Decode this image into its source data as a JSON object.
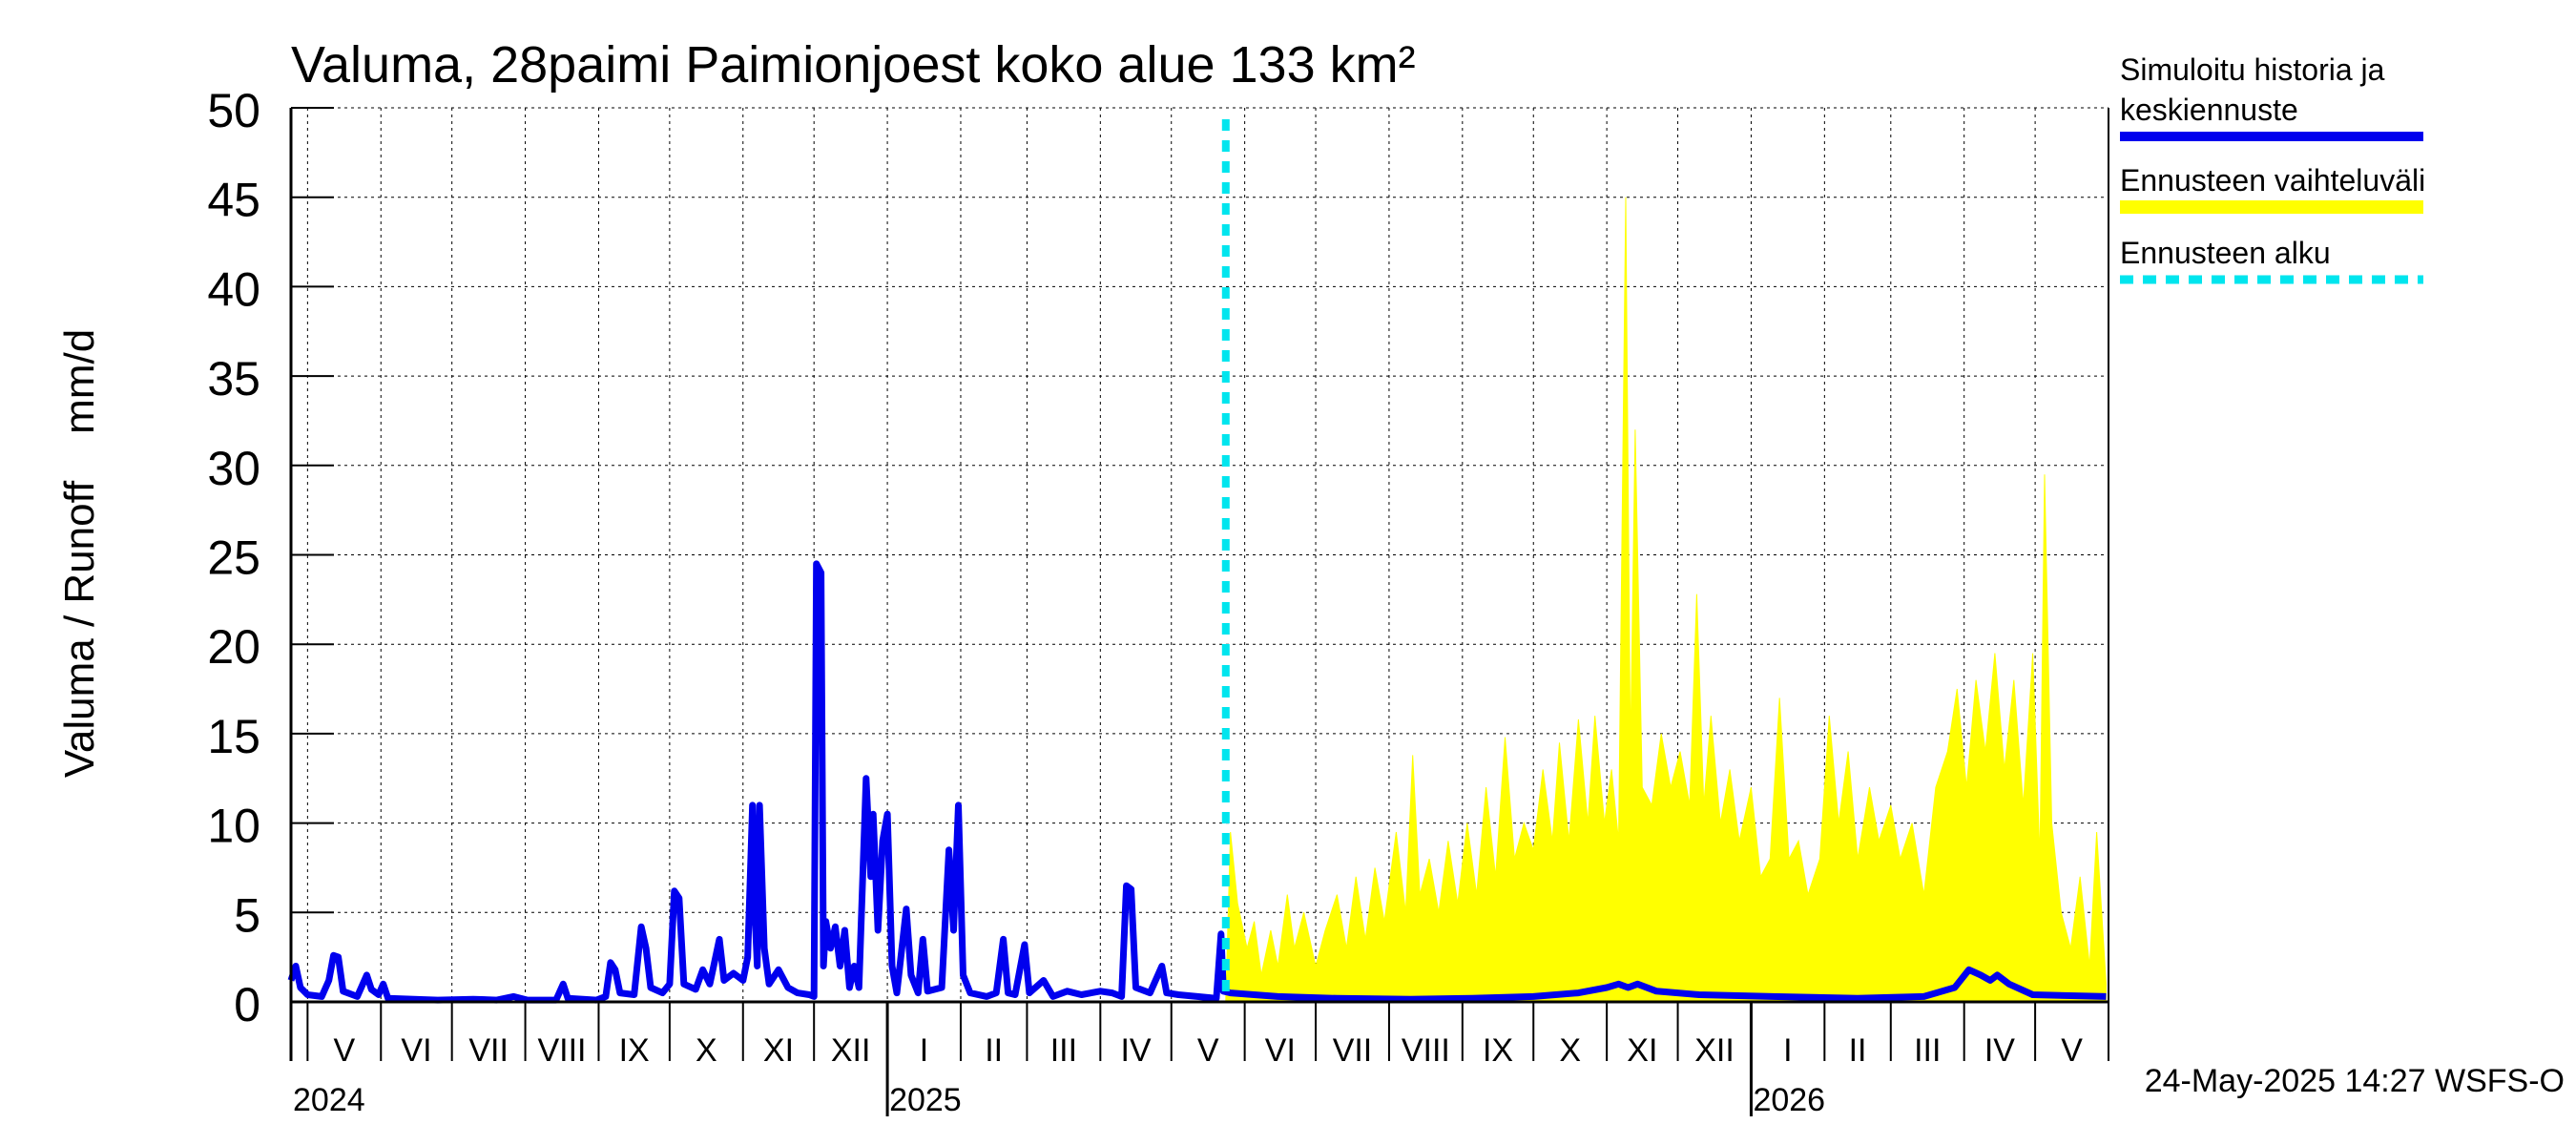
{
  "chart_data": {
    "type": "area",
    "title": "Valuma, 28paimi Paimionjoest koko alue 133 km²",
    "ylabel": "Valuma / Runoff    mm/d",
    "ylim": [
      0,
      50
    ],
    "yticks": [
      0,
      5,
      10,
      15,
      20,
      25,
      30,
      35,
      40,
      45,
      50
    ],
    "xlim": [
      "2024-04-24",
      "2026-05-31"
    ],
    "grid": true,
    "legend_position": "right",
    "forecast_start": "2025-05-24",
    "timestamp": "24-May-2025 14:27 WSFS-O",
    "month_labels": [
      {
        "label": "V",
        "start": "2024-05-01",
        "end": "2024-05-31"
      },
      {
        "label": "VI",
        "start": "2024-06-01",
        "end": "2024-06-30"
      },
      {
        "label": "VII",
        "start": "2024-07-01",
        "end": "2024-07-31"
      },
      {
        "label": "VIII",
        "start": "2024-08-01",
        "end": "2024-08-31"
      },
      {
        "label": "IX",
        "start": "2024-09-01",
        "end": "2024-09-30"
      },
      {
        "label": "X",
        "start": "2024-10-01",
        "end": "2024-10-31"
      },
      {
        "label": "XI",
        "start": "2024-11-01",
        "end": "2024-11-30"
      },
      {
        "label": "XII",
        "start": "2024-12-01",
        "end": "2024-12-31"
      },
      {
        "label": "I",
        "start": "2025-01-01",
        "end": "2025-01-31"
      },
      {
        "label": "II",
        "start": "2025-02-01",
        "end": "2025-02-28"
      },
      {
        "label": "III",
        "start": "2025-03-01",
        "end": "2025-03-31"
      },
      {
        "label": "IV",
        "start": "2025-04-01",
        "end": "2025-04-30"
      },
      {
        "label": "V",
        "start": "2025-05-01",
        "end": "2025-05-31"
      },
      {
        "label": "VI",
        "start": "2025-06-01",
        "end": "2025-06-30"
      },
      {
        "label": "VII",
        "start": "2025-07-01",
        "end": "2025-07-31"
      },
      {
        "label": "VIII",
        "start": "2025-08-01",
        "end": "2025-08-31"
      },
      {
        "label": "IX",
        "start": "2025-09-01",
        "end": "2025-09-30"
      },
      {
        "label": "X",
        "start": "2025-10-01",
        "end": "2025-10-31"
      },
      {
        "label": "XI",
        "start": "2025-11-01",
        "end": "2025-11-30"
      },
      {
        "label": "XII",
        "start": "2025-12-01",
        "end": "2025-12-31"
      },
      {
        "label": "I",
        "start": "2026-01-01",
        "end": "2026-01-31"
      },
      {
        "label": "II",
        "start": "2026-02-01",
        "end": "2026-02-28"
      },
      {
        "label": "III",
        "start": "2026-03-01",
        "end": "2026-03-31"
      },
      {
        "label": "IV",
        "start": "2026-04-01",
        "end": "2026-04-30"
      },
      {
        "label": "V",
        "start": "2026-05-01",
        "end": "2026-05-31"
      }
    ],
    "year_labels": [
      {
        "label": "2024",
        "date": "2024-04-24"
      },
      {
        "label": "2025",
        "date": "2025-01-01"
      },
      {
        "label": "2026",
        "date": "2026-01-01"
      }
    ],
    "series": [
      {
        "name": "Simuloitu historia ja keskiennuste",
        "color": "#0000ee",
        "points": [
          [
            "2024-04-24",
            1.2
          ],
          [
            "2024-04-26",
            2.0
          ],
          [
            "2024-04-28",
            0.8
          ],
          [
            "2024-05-01",
            0.4
          ],
          [
            "2024-05-07",
            0.3
          ],
          [
            "2024-05-10",
            1.2
          ],
          [
            "2024-05-12",
            2.6
          ],
          [
            "2024-05-14",
            2.5
          ],
          [
            "2024-05-16",
            0.6
          ],
          [
            "2024-05-22",
            0.3
          ],
          [
            "2024-05-26",
            1.5
          ],
          [
            "2024-05-28",
            0.7
          ],
          [
            "2024-05-31",
            0.4
          ],
          [
            "2024-06-02",
            1.0
          ],
          [
            "2024-06-04",
            0.2
          ],
          [
            "2024-06-15",
            0.15
          ],
          [
            "2024-06-25",
            0.1
          ],
          [
            "2024-07-10",
            0.15
          ],
          [
            "2024-07-20",
            0.1
          ],
          [
            "2024-07-27",
            0.3
          ],
          [
            "2024-08-02",
            0.1
          ],
          [
            "2024-08-14",
            0.1
          ],
          [
            "2024-08-17",
            1.0
          ],
          [
            "2024-08-19",
            0.2
          ],
          [
            "2024-08-31",
            0.1
          ],
          [
            "2024-09-04",
            0.3
          ],
          [
            "2024-09-06",
            2.2
          ],
          [
            "2024-09-08",
            1.8
          ],
          [
            "2024-09-10",
            0.5
          ],
          [
            "2024-09-16",
            0.4
          ],
          [
            "2024-09-19",
            4.2
          ],
          [
            "2024-09-21",
            3.0
          ],
          [
            "2024-09-23",
            0.8
          ],
          [
            "2024-09-28",
            0.5
          ],
          [
            "2024-10-01",
            1.0
          ],
          [
            "2024-10-03",
            6.2
          ],
          [
            "2024-10-05",
            5.8
          ],
          [
            "2024-10-07",
            1.0
          ],
          [
            "2024-10-12",
            0.7
          ],
          [
            "2024-10-15",
            1.8
          ],
          [
            "2024-10-18",
            1.0
          ],
          [
            "2024-10-22",
            3.5
          ],
          [
            "2024-10-24",
            1.2
          ],
          [
            "2024-10-28",
            1.6
          ],
          [
            "2024-11-01",
            1.2
          ],
          [
            "2024-11-03",
            2.5
          ],
          [
            "2024-11-05",
            11.0
          ],
          [
            "2024-11-06",
            5.0
          ],
          [
            "2024-11-07",
            2.0
          ],
          [
            "2024-11-08",
            11.0
          ],
          [
            "2024-11-10",
            3.0
          ],
          [
            "2024-11-12",
            1.0
          ],
          [
            "2024-11-16",
            1.8
          ],
          [
            "2024-11-20",
            0.8
          ],
          [
            "2024-11-24",
            0.5
          ],
          [
            "2024-11-29",
            0.4
          ],
          [
            "2024-12-01",
            0.3
          ],
          [
            "2024-12-02",
            24.5
          ],
          [
            "2024-12-04",
            24.0
          ],
          [
            "2024-12-05",
            2.0
          ],
          [
            "2024-12-06",
            4.5
          ],
          [
            "2024-12-08",
            3.0
          ],
          [
            "2024-12-10",
            4.2
          ],
          [
            "2024-12-12",
            2.0
          ],
          [
            "2024-12-14",
            4.0
          ],
          [
            "2024-12-16",
            0.8
          ],
          [
            "2024-12-18",
            2.0
          ],
          [
            "2024-12-20",
            0.8
          ],
          [
            "2024-12-23",
            12.5
          ],
          [
            "2024-12-25",
            7.0
          ],
          [
            "2024-12-26",
            10.5
          ],
          [
            "2024-12-28",
            4.0
          ],
          [
            "2024-12-30",
            9.0
          ],
          [
            "2025-01-01",
            10.5
          ],
          [
            "2025-01-03",
            2.0
          ],
          [
            "2025-01-05",
            0.5
          ],
          [
            "2025-01-09",
            5.2
          ],
          [
            "2025-01-11",
            1.5
          ],
          [
            "2025-01-14",
            0.5
          ],
          [
            "2025-01-16",
            3.5
          ],
          [
            "2025-01-18",
            0.6
          ],
          [
            "2025-01-24",
            0.8
          ],
          [
            "2025-01-27",
            8.5
          ],
          [
            "2025-01-29",
            4.0
          ],
          [
            "2025-01-31",
            11.0
          ],
          [
            "2025-02-02",
            1.5
          ],
          [
            "2025-02-05",
            0.5
          ],
          [
            "2025-02-12",
            0.3
          ],
          [
            "2025-02-16",
            0.5
          ],
          [
            "2025-02-19",
            3.5
          ],
          [
            "2025-02-21",
            0.5
          ],
          [
            "2025-02-24",
            0.4
          ],
          [
            "2025-02-28",
            3.2
          ],
          [
            "2025-03-02",
            0.5
          ],
          [
            "2025-03-08",
            1.2
          ],
          [
            "2025-03-12",
            0.3
          ],
          [
            "2025-03-18",
            0.6
          ],
          [
            "2025-03-24",
            0.4
          ],
          [
            "2025-04-01",
            0.6
          ],
          [
            "2025-04-06",
            0.5
          ],
          [
            "2025-04-10",
            0.3
          ],
          [
            "2025-04-12",
            6.5
          ],
          [
            "2025-04-14",
            6.3
          ],
          [
            "2025-04-16",
            0.8
          ],
          [
            "2025-04-22",
            0.5
          ],
          [
            "2025-04-27",
            2.0
          ],
          [
            "2025-04-29",
            0.5
          ],
          [
            "2025-05-04",
            0.4
          ],
          [
            "2025-05-12",
            0.3
          ],
          [
            "2025-05-20",
            0.2
          ],
          [
            "2025-05-22",
            3.8
          ],
          [
            "2025-05-23",
            0.6
          ],
          [
            "2025-05-26",
            0.5
          ],
          [
            "2025-06-15",
            0.3
          ],
          [
            "2025-07-10",
            0.2
          ],
          [
            "2025-08-10",
            0.15
          ],
          [
            "2025-09-05",
            0.2
          ],
          [
            "2025-10-01",
            0.3
          ],
          [
            "2025-10-20",
            0.5
          ],
          [
            "2025-11-01",
            0.8
          ],
          [
            "2025-11-06",
            1.0
          ],
          [
            "2025-11-10",
            0.8
          ],
          [
            "2025-11-14",
            1.0
          ],
          [
            "2025-11-22",
            0.6
          ],
          [
            "2025-12-10",
            0.4
          ],
          [
            "2026-01-10",
            0.3
          ],
          [
            "2026-02-15",
            0.2
          ],
          [
            "2026-03-15",
            0.3
          ],
          [
            "2026-03-28",
            0.8
          ],
          [
            "2026-04-03",
            1.8
          ],
          [
            "2026-04-08",
            1.5
          ],
          [
            "2026-04-12",
            1.2
          ],
          [
            "2026-04-15",
            1.5
          ],
          [
            "2026-04-20",
            1.0
          ],
          [
            "2026-04-30",
            0.4
          ],
          [
            "2026-05-31",
            0.3
          ]
        ]
      },
      {
        "name": "Ennusteen vaihteluväli",
        "color": "#ffff00",
        "points": [
          [
            "2025-05-24",
            0.1
          ],
          [
            "2025-05-26",
            9.5
          ],
          [
            "2025-05-29",
            5.5
          ],
          [
            "2025-06-02",
            3.0
          ],
          [
            "2025-06-05",
            4.5
          ],
          [
            "2025-06-08",
            1.5
          ],
          [
            "2025-06-12",
            4.0
          ],
          [
            "2025-06-15",
            2.0
          ],
          [
            "2025-06-19",
            6.0
          ],
          [
            "2025-06-22",
            3.0
          ],
          [
            "2025-06-26",
            5.0
          ],
          [
            "2025-07-01",
            2.0
          ],
          [
            "2025-07-05",
            4.0
          ],
          [
            "2025-07-10",
            6.0
          ],
          [
            "2025-07-14",
            3.0
          ],
          [
            "2025-07-18",
            7.0
          ],
          [
            "2025-07-22",
            3.5
          ],
          [
            "2025-07-26",
            7.5
          ],
          [
            "2025-07-30",
            4.5
          ],
          [
            "2025-08-04",
            9.5
          ],
          [
            "2025-08-08",
            5.0
          ],
          [
            "2025-08-11",
            13.8
          ],
          [
            "2025-08-14",
            6.0
          ],
          [
            "2025-08-18",
            8.0
          ],
          [
            "2025-08-22",
            5.0
          ],
          [
            "2025-08-26",
            9.0
          ],
          [
            "2025-08-30",
            5.5
          ],
          [
            "2025-09-03",
            10.0
          ],
          [
            "2025-09-07",
            6.0
          ],
          [
            "2025-09-11",
            12.0
          ],
          [
            "2025-09-15",
            7.0
          ],
          [
            "2025-09-19",
            14.8
          ],
          [
            "2025-09-23",
            8.0
          ],
          [
            "2025-09-27",
            10.0
          ],
          [
            "2025-10-01",
            8.5
          ],
          [
            "2025-10-05",
            13.0
          ],
          [
            "2025-10-09",
            9.0
          ],
          [
            "2025-10-12",
            14.5
          ],
          [
            "2025-10-16",
            9.0
          ],
          [
            "2025-10-20",
            15.8
          ],
          [
            "2025-10-24",
            10.0
          ],
          [
            "2025-10-27",
            16.0
          ],
          [
            "2025-10-31",
            10.0
          ],
          [
            "2025-11-03",
            13.0
          ],
          [
            "2025-11-06",
            9.0
          ],
          [
            "2025-11-09",
            45.0
          ],
          [
            "2025-11-11",
            14.0
          ],
          [
            "2025-11-13",
            32.0
          ],
          [
            "2025-11-16",
            12.0
          ],
          [
            "2025-11-20",
            11.0
          ],
          [
            "2025-11-24",
            15.0
          ],
          [
            "2025-11-28",
            12.0
          ],
          [
            "2025-12-02",
            14.0
          ],
          [
            "2025-12-06",
            11.0
          ],
          [
            "2025-12-09",
            22.8
          ],
          [
            "2025-12-12",
            11.0
          ],
          [
            "2025-12-15",
            16.0
          ],
          [
            "2025-12-19",
            10.0
          ],
          [
            "2025-12-23",
            13.0
          ],
          [
            "2025-12-27",
            9.0
          ],
          [
            "2026-01-01",
            12.0
          ],
          [
            "2026-01-05",
            7.0
          ],
          [
            "2026-01-09",
            8.0
          ],
          [
            "2026-01-13",
            17.0
          ],
          [
            "2026-01-17",
            8.0
          ],
          [
            "2026-01-21",
            9.0
          ],
          [
            "2026-01-25",
            6.0
          ],
          [
            "2026-01-30",
            8.0
          ],
          [
            "2026-02-03",
            16.0
          ],
          [
            "2026-02-07",
            10.0
          ],
          [
            "2026-02-11",
            14.0
          ],
          [
            "2026-02-15",
            8.0
          ],
          [
            "2026-02-20",
            12.0
          ],
          [
            "2026-02-24",
            9.0
          ],
          [
            "2026-03-01",
            11.0
          ],
          [
            "2026-03-05",
            8.0
          ],
          [
            "2026-03-10",
            10.0
          ],
          [
            "2026-03-15",
            6.0
          ],
          [
            "2026-03-20",
            12.0
          ],
          [
            "2026-03-25",
            14.0
          ],
          [
            "2026-03-29",
            17.5
          ],
          [
            "2026-04-02",
            12.0
          ],
          [
            "2026-04-06",
            18.0
          ],
          [
            "2026-04-10",
            14.0
          ],
          [
            "2026-04-14",
            19.5
          ],
          [
            "2026-04-18",
            13.0
          ],
          [
            "2026-04-22",
            18.0
          ],
          [
            "2026-04-26",
            11.0
          ],
          [
            "2026-04-30",
            19.5
          ],
          [
            "2026-05-03",
            8.0
          ],
          [
            "2026-05-05",
            29.5
          ],
          [
            "2026-05-08",
            10.0
          ],
          [
            "2026-05-12",
            5.0
          ],
          [
            "2026-05-16",
            3.0
          ],
          [
            "2026-05-20",
            7.0
          ],
          [
            "2026-05-24",
            2.0
          ],
          [
            "2026-05-27",
            9.5
          ],
          [
            "2026-05-31",
            1.0
          ]
        ]
      },
      {
        "name": "Ennusteen alku",
        "color": "#00e5ee"
      }
    ]
  }
}
